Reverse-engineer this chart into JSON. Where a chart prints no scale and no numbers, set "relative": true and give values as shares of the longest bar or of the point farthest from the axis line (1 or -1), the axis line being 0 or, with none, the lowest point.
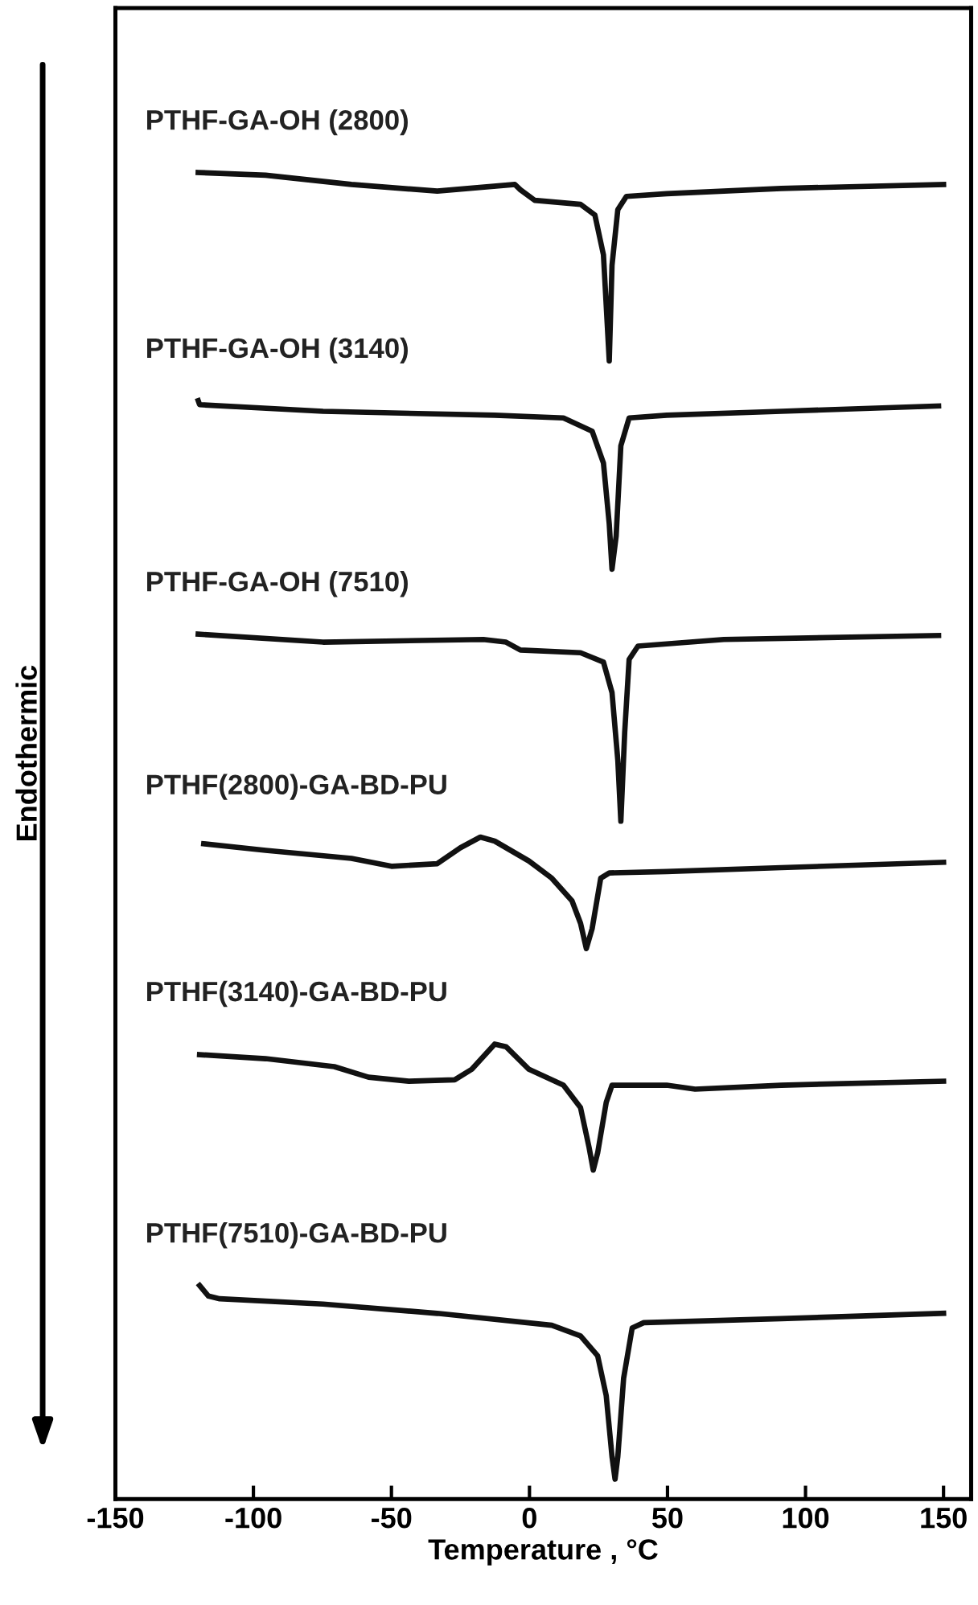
{
  "chart_data": {
    "type": "line",
    "relative": true,
    "xlabel": "Temperature , °C",
    "ylabel": "Endothermic",
    "xlim": [
      -150,
      160
    ],
    "xticks": [
      -150,
      -100,
      -50,
      0,
      50,
      100,
      150
    ],
    "grid": false,
    "legend": false,
    "marker": "none",
    "line_style": "solid",
    "tick_labels": "x",
    "series": [
      {
        "name": "PTHF-GA-OH (2800)",
        "color": "#111111",
        "x": [
          -120,
          -95.6,
          -64.5,
          -33.4,
          -5.3,
          -3.3,
          1.9,
          18.5,
          23.7,
          26.8,
          28.9,
          29.9,
          32,
          35.1,
          49.7,
          91.2,
          150
        ],
        "values": [
          1.0,
          0.998,
          0.991,
          0.986,
          0.991,
          0.987,
          0.979,
          0.976,
          0.968,
          0.938,
          0.858,
          0.93,
          0.972,
          0.982,
          0.984,
          0.988,
          0.991
        ]
      },
      {
        "name": "PTHF-GA-OH (3140)",
        "color": "#111111",
        "x": [
          -120,
          -119.5,
          -74.8,
          -12.6,
          12.3,
          22.7,
          26.8,
          28.9,
          29.9,
          31.4,
          33.1,
          36.1,
          49.7,
          91.2,
          148.2
        ],
        "values": [
          0.828,
          0.825,
          0.82,
          0.817,
          0.815,
          0.805,
          0.781,
          0.735,
          0.701,
          0.726,
          0.794,
          0.815,
          0.817,
          0.82,
          0.824
        ]
      },
      {
        "name": "PTHF-GA-OH (7510)",
        "color": "#111111",
        "x": [
          -120,
          -74.8,
          -16.7,
          -8.5,
          -3.3,
          18.5,
          26.8,
          29.9,
          32,
          33.1,
          34.5,
          36.1,
          39.3,
          70.4,
          148.2
        ],
        "values": [
          0.652,
          0.646,
          0.648,
          0.646,
          0.64,
          0.638,
          0.631,
          0.608,
          0.557,
          0.511,
          0.578,
          0.633,
          0.643,
          0.648,
          0.651
        ]
      },
      {
        "name": "PTHF(2800)-GA-BD-PU",
        "color": "#111111",
        "x": [
          -118,
          -95.6,
          -64.5,
          -50,
          -33.4,
          -25,
          -17.8,
          -12.6,
          -0.2,
          8.1,
          15.4,
          18.5,
          20.6,
          22.7,
          25.8,
          28.9,
          49.7,
          91.2,
          150
        ],
        "values": [
          0.494,
          0.489,
          0.483,
          0.477,
          0.479,
          0.491,
          0.499,
          0.496,
          0.481,
          0.468,
          0.451,
          0.434,
          0.415,
          0.43,
          0.468,
          0.472,
          0.473,
          0.476,
          0.48
        ]
      },
      {
        "name": "PTHF(3140)-GA-BD-PU",
        "color": "#111111",
        "x": [
          -119.5,
          -95.6,
          -70.7,
          -58.3,
          -43.7,
          -27.1,
          -20.9,
          -12.6,
          -8.5,
          -0.2,
          12.3,
          18.5,
          21.6,
          23.1,
          24.7,
          27.8,
          29.9,
          49.7,
          60,
          91.2,
          150
        ],
        "values": [
          0.335,
          0.332,
          0.326,
          0.318,
          0.315,
          0.316,
          0.324,
          0.343,
          0.341,
          0.324,
          0.312,
          0.295,
          0.265,
          0.248,
          0.261,
          0.299,
          0.312,
          0.312,
          0.309,
          0.312,
          0.315
        ]
      },
      {
        "name": "PTHF(7510)-GA-BD-PU",
        "color": "#111111",
        "x": [
          -119.5,
          -116.3,
          -112.2,
          -74.8,
          -33.4,
          8.1,
          18.5,
          24.7,
          27.8,
          29.9,
          31,
          32,
          34.1,
          37.2,
          41.4,
          91.2,
          150
        ],
        "values": [
          0.161,
          0.153,
          0.151,
          0.147,
          0.14,
          0.131,
          0.123,
          0.108,
          0.078,
          0.032,
          0.015,
          0.032,
          0.091,
          0.129,
          0.133,
          0.136,
          0.14
        ]
      }
    ]
  }
}
